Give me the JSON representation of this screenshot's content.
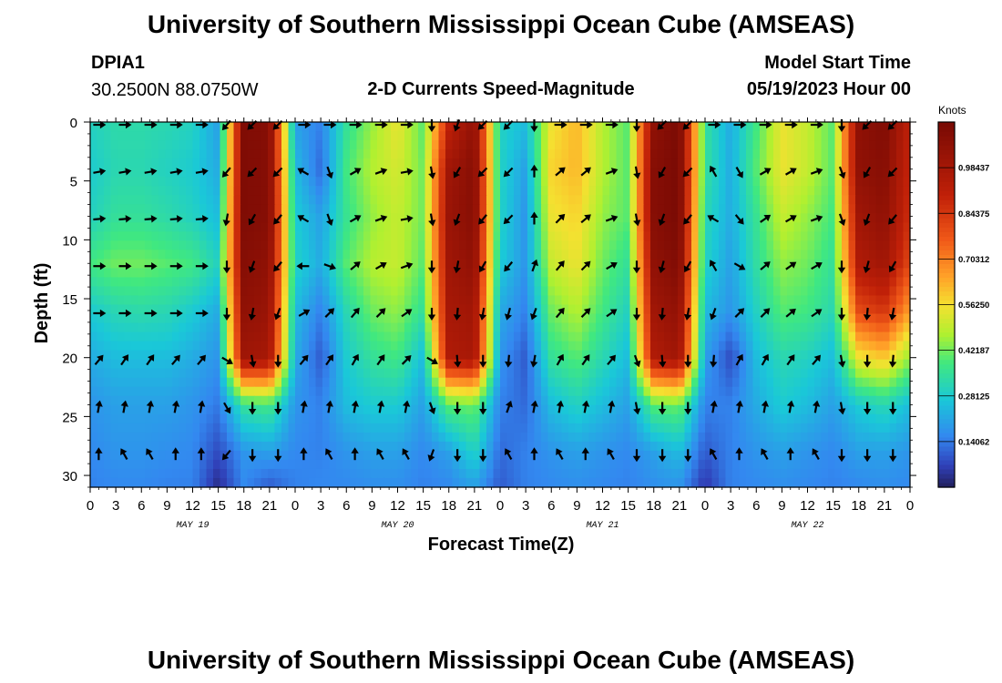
{
  "page": {
    "title": "University of Southern Mississippi Ocean Cube (AMSEAS)",
    "footer_title": "University of Southern Mississippi Ocean Cube (AMSEAS)",
    "station_id": "DPIA1",
    "station_coords": "30.2500N  88.0750W",
    "plot_subtitle": "2-D Currents Speed-Magnitude",
    "model_start_label": "Model Start Time",
    "model_start_value": "05/19/2023 Hour 00"
  },
  "chart_data": {
    "type": "heatmap",
    "title": "2-D Currents Speed-Magnitude",
    "xlabel": "Forecast Time(Z)",
    "ylabel": "Depth (ft)",
    "x_range_hours": [
      0,
      96
    ],
    "y_range_ft": [
      0,
      31
    ],
    "x_ticks": [
      {
        "h": 0,
        "label": "0"
      },
      {
        "h": 3,
        "label": "3"
      },
      {
        "h": 6,
        "label": "6"
      },
      {
        "h": 9,
        "label": "9"
      },
      {
        "h": 12,
        "label": "12"
      },
      {
        "h": 15,
        "label": "15"
      },
      {
        "h": 18,
        "label": "18"
      },
      {
        "h": 21,
        "label": "21"
      },
      {
        "h": 24,
        "label": "0"
      },
      {
        "h": 27,
        "label": "3"
      },
      {
        "h": 30,
        "label": "6"
      },
      {
        "h": 33,
        "label": "9"
      },
      {
        "h": 36,
        "label": "12"
      },
      {
        "h": 39,
        "label": "15"
      },
      {
        "h": 42,
        "label": "18"
      },
      {
        "h": 45,
        "label": "21"
      },
      {
        "h": 48,
        "label": "0"
      },
      {
        "h": 51,
        "label": "3"
      },
      {
        "h": 54,
        "label": "6"
      },
      {
        "h": 57,
        "label": "9"
      },
      {
        "h": 60,
        "label": "12"
      },
      {
        "h": 63,
        "label": "15"
      },
      {
        "h": 66,
        "label": "18"
      },
      {
        "h": 69,
        "label": "21"
      },
      {
        "h": 72,
        "label": "0"
      },
      {
        "h": 75,
        "label": "3"
      },
      {
        "h": 78,
        "label": "6"
      },
      {
        "h": 81,
        "label": "9"
      },
      {
        "h": 84,
        "label": "12"
      },
      {
        "h": 87,
        "label": "15"
      },
      {
        "h": 90,
        "label": "18"
      },
      {
        "h": 93,
        "label": "21"
      },
      {
        "h": 96,
        "label": "0"
      }
    ],
    "date_labels": [
      {
        "h": 12,
        "label": "MAY 19"
      },
      {
        "h": 36,
        "label": "MAY 20"
      },
      {
        "h": 60,
        "label": "MAY 21"
      },
      {
        "h": 84,
        "label": "MAY 22"
      }
    ],
    "y_ticks": [
      0,
      5,
      10,
      15,
      20,
      25,
      30
    ],
    "colorbar": {
      "unit": "Knots",
      "min": 0.0,
      "max": 1.125,
      "ticks": [
        {
          "value": 0.14062,
          "label": "0.14062"
        },
        {
          "value": 0.28125,
          "label": "0.28125"
        },
        {
          "value": 0.42187,
          "label": "0.42187"
        },
        {
          "value": 0.5625,
          "label": "0.56250"
        },
        {
          "value": 0.70312,
          "label": "0.70312"
        },
        {
          "value": 0.84375,
          "label": "0.84375"
        },
        {
          "value": 0.98437,
          "label": "0.98437"
        }
      ]
    },
    "speed_field": {
      "description_units": "knots",
      "depths_ft": [
        0,
        4,
        8,
        12,
        16,
        20,
        24,
        28,
        31
      ],
      "hour_nodes": [
        0,
        3,
        6,
        9,
        12,
        15,
        18,
        21,
        24,
        27,
        30,
        33,
        36,
        39,
        42,
        45,
        48,
        51,
        54,
        57,
        60,
        63,
        66,
        69,
        72,
        75,
        78,
        81,
        84,
        87,
        90,
        93,
        96
      ],
      "values": [
        [
          0.3,
          0.33,
          0.33,
          0.32,
          0.3,
          0.2,
          1.1,
          1.08,
          0.2,
          0.15,
          0.35,
          0.45,
          0.55,
          0.4,
          0.9,
          1.05,
          0.3,
          0.25,
          0.55,
          0.62,
          0.48,
          0.4,
          1.05,
          1.12,
          0.35,
          0.22,
          0.38,
          0.55,
          0.5,
          0.4,
          1.05,
          1.1,
          0.9
        ],
        [
          0.28,
          0.32,
          0.32,
          0.3,
          0.28,
          0.22,
          1.1,
          1.08,
          0.25,
          0.12,
          0.38,
          0.48,
          0.52,
          0.42,
          1.0,
          1.08,
          0.3,
          0.2,
          0.58,
          0.62,
          0.48,
          0.4,
          1.08,
          1.12,
          0.35,
          0.22,
          0.4,
          0.55,
          0.5,
          0.4,
          1.05,
          1.08,
          0.88
        ],
        [
          0.3,
          0.35,
          0.35,
          0.33,
          0.3,
          0.25,
          1.1,
          1.08,
          0.28,
          0.2,
          0.36,
          0.45,
          0.5,
          0.42,
          1.02,
          1.08,
          0.3,
          0.18,
          0.55,
          0.58,
          0.45,
          0.4,
          1.08,
          1.12,
          0.32,
          0.22,
          0.36,
          0.5,
          0.45,
          0.38,
          1.0,
          1.05,
          0.86
        ],
        [
          0.38,
          0.42,
          0.42,
          0.4,
          0.38,
          0.3,
          1.08,
          1.05,
          0.3,
          0.22,
          0.4,
          0.48,
          0.5,
          0.4,
          1.0,
          1.05,
          0.28,
          0.18,
          0.5,
          0.55,
          0.42,
          0.35,
          1.05,
          1.1,
          0.3,
          0.2,
          0.34,
          0.45,
          0.42,
          0.35,
          0.95,
          1.0,
          0.8
        ],
        [
          0.28,
          0.32,
          0.33,
          0.32,
          0.28,
          0.22,
          1.05,
          1.02,
          0.25,
          0.15,
          0.32,
          0.42,
          0.45,
          0.35,
          0.98,
          1.0,
          0.22,
          0.15,
          0.42,
          0.48,
          0.38,
          0.3,
          1.0,
          1.05,
          0.25,
          0.18,
          0.3,
          0.4,
          0.38,
          0.32,
          0.8,
          0.85,
          0.65
        ],
        [
          0.22,
          0.25,
          0.25,
          0.25,
          0.22,
          0.18,
          1.0,
          0.98,
          0.22,
          0.1,
          0.28,
          0.35,
          0.38,
          0.25,
          0.95,
          0.98,
          0.18,
          0.1,
          0.35,
          0.4,
          0.32,
          0.25,
          0.95,
          1.0,
          0.2,
          0.08,
          0.25,
          0.32,
          0.3,
          0.25,
          0.55,
          0.6,
          0.45
        ],
        [
          0.18,
          0.2,
          0.2,
          0.2,
          0.18,
          0.14,
          0.35,
          0.38,
          0.18,
          0.15,
          0.25,
          0.28,
          0.28,
          0.2,
          0.4,
          0.42,
          0.15,
          0.12,
          0.25,
          0.3,
          0.25,
          0.2,
          0.4,
          0.42,
          0.15,
          0.15,
          0.22,
          0.28,
          0.25,
          0.2,
          0.28,
          0.32,
          0.25
        ],
        [
          0.16,
          0.18,
          0.18,
          0.17,
          0.16,
          0.08,
          0.18,
          0.2,
          0.16,
          0.15,
          0.18,
          0.2,
          0.2,
          0.16,
          0.2,
          0.3,
          0.12,
          0.15,
          0.18,
          0.2,
          0.18,
          0.16,
          0.2,
          0.25,
          0.1,
          0.15,
          0.18,
          0.2,
          0.18,
          0.16,
          0.2,
          0.2,
          0.18
        ],
        [
          0.15,
          0.16,
          0.16,
          0.15,
          0.15,
          0.03,
          0.16,
          0.1,
          0.15,
          0.16,
          0.16,
          0.17,
          0.17,
          0.15,
          0.16,
          0.2,
          0.1,
          0.15,
          0.16,
          0.17,
          0.16,
          0.15,
          0.17,
          0.18,
          0.05,
          0.15,
          0.16,
          0.17,
          0.16,
          0.15,
          0.16,
          0.17,
          0.16
        ]
      ]
    },
    "vector_field": {
      "description": "current direction arrows; angle in degrees clockwise from north",
      "columns_hours": [
        1,
        4,
        7,
        10,
        13,
        16,
        19,
        22,
        25,
        28,
        31,
        34,
        37,
        40,
        43,
        46,
        49,
        52,
        55,
        58,
        61,
        64,
        67,
        70,
        73,
        76,
        79,
        82,
        85,
        88,
        91,
        94,
        97
      ],
      "rows_ft": [
        0,
        4,
        8,
        12,
        16,
        20,
        24,
        28
      ],
      "angles_deg": [
        [
          90,
          90,
          90,
          90,
          90,
          220,
          225,
          225,
          90,
          90,
          90,
          90,
          90,
          180,
          200,
          225,
          225,
          180,
          90,
          90,
          90,
          180,
          225,
          225,
          90,
          90,
          90,
          90,
          90,
          180,
          225,
          225,
          225
        ],
        [
          80,
          80,
          80,
          80,
          80,
          220,
          225,
          225,
          300,
          160,
          60,
          70,
          80,
          170,
          210,
          225,
          225,
          0,
          50,
          50,
          70,
          170,
          210,
          225,
          330,
          150,
          60,
          60,
          70,
          160,
          210,
          225,
          225
        ],
        [
          85,
          85,
          85,
          85,
          85,
          190,
          210,
          220,
          300,
          160,
          60,
          70,
          80,
          170,
          200,
          220,
          225,
          0,
          45,
          50,
          70,
          170,
          200,
          220,
          300,
          140,
          55,
          60,
          70,
          160,
          200,
          220,
          220
        ],
        [
          90,
          90,
          90,
          90,
          90,
          180,
          200,
          220,
          270,
          110,
          50,
          60,
          70,
          180,
          190,
          210,
          220,
          20,
          40,
          45,
          60,
          180,
          195,
          210,
          330,
          120,
          50,
          55,
          60,
          180,
          195,
          210,
          210
        ],
        [
          90,
          90,
          90,
          90,
          90,
          180,
          190,
          200,
          60,
          45,
          40,
          45,
          55,
          180,
          185,
          190,
          195,
          200,
          40,
          45,
          55,
          180,
          185,
          190,
          200,
          45,
          45,
          50,
          55,
          180,
          185,
          190,
          200
        ],
        [
          40,
          35,
          35,
          40,
          40,
          120,
          170,
          180,
          40,
          35,
          30,
          35,
          45,
          120,
          175,
          180,
          185,
          190,
          30,
          35,
          40,
          160,
          175,
          180,
          185,
          30,
          30,
          35,
          40,
          170,
          180,
          185,
          190
        ],
        [
          10,
          10,
          10,
          10,
          10,
          150,
          180,
          180,
          10,
          10,
          10,
          10,
          10,
          160,
          180,
          180,
          20,
          10,
          10,
          10,
          10,
          170,
          180,
          180,
          10,
          10,
          10,
          10,
          10,
          170,
          180,
          180,
          180
        ],
        [
          0,
          330,
          330,
          0,
          0,
          220,
          180,
          180,
          0,
          330,
          0,
          330,
          330,
          200,
          180,
          180,
          330,
          0,
          330,
          0,
          330,
          180,
          180,
          180,
          330,
          0,
          330,
          0,
          330,
          180,
          180,
          180,
          180
        ]
      ]
    }
  }
}
